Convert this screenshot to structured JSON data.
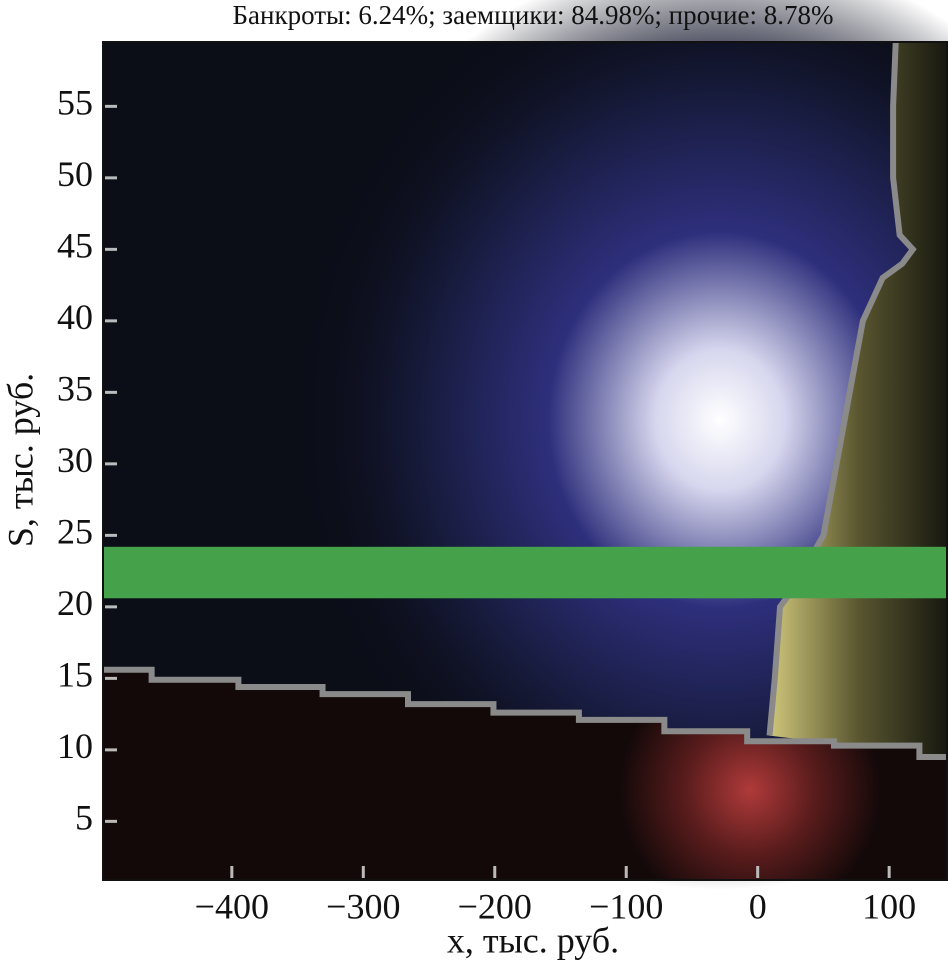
{
  "chart_data": {
    "type": "heatmap",
    "title": "Банкроты: 6.24%; заемщики: 84.98%; прочие: 8.78%",
    "x_label": "x, тыс. руб.",
    "y_label": "S, тыс. руб.",
    "xlim": [
      -498,
      144
    ],
    "ylim": [
      0.9,
      59.5
    ],
    "xticks": [
      {
        "value": -400,
        "label": "−400"
      },
      {
        "value": -300,
        "label": "−300"
      },
      {
        "value": -200,
        "label": "−200"
      },
      {
        "value": -100,
        "label": "−100"
      },
      0,
      100
    ],
    "yticks": [
      5,
      10,
      15,
      20,
      25,
      30,
      35,
      40,
      45,
      50,
      55
    ],
    "band": {
      "y": [
        20.6,
        24.2
      ],
      "color": "#46a24a"
    },
    "boundaries": [
      {
        "color": "#8a8a8a",
        "x": [
          -498,
          -461,
          -461,
          -395,
          -395,
          -331,
          -331,
          -266,
          -266,
          -201,
          -201,
          -136,
          -136,
          -71,
          -71,
          -8,
          -8,
          58,
          58,
          123,
          123,
          144
        ],
        "values": [
          15.6,
          15.6,
          14.9,
          14.9,
          14.4,
          14.4,
          13.9,
          13.9,
          13.2,
          13.2,
          12.6,
          12.6,
          12.1,
          12.1,
          11.3,
          11.3,
          10.6,
          10.6,
          10.3,
          10.3,
          9.5,
          9.5
        ]
      },
      {
        "color": "#8a8a8a",
        "x": [
          9,
          13,
          17,
          25,
          50,
          60,
          70,
          80,
          95,
          110,
          118,
          108,
          103,
          103,
          105
        ],
        "values": [
          11,
          15,
          20,
          21,
          25,
          30,
          35,
          40,
          43,
          44,
          45,
          46,
          50,
          55,
          59.5
        ]
      }
    ]
  }
}
